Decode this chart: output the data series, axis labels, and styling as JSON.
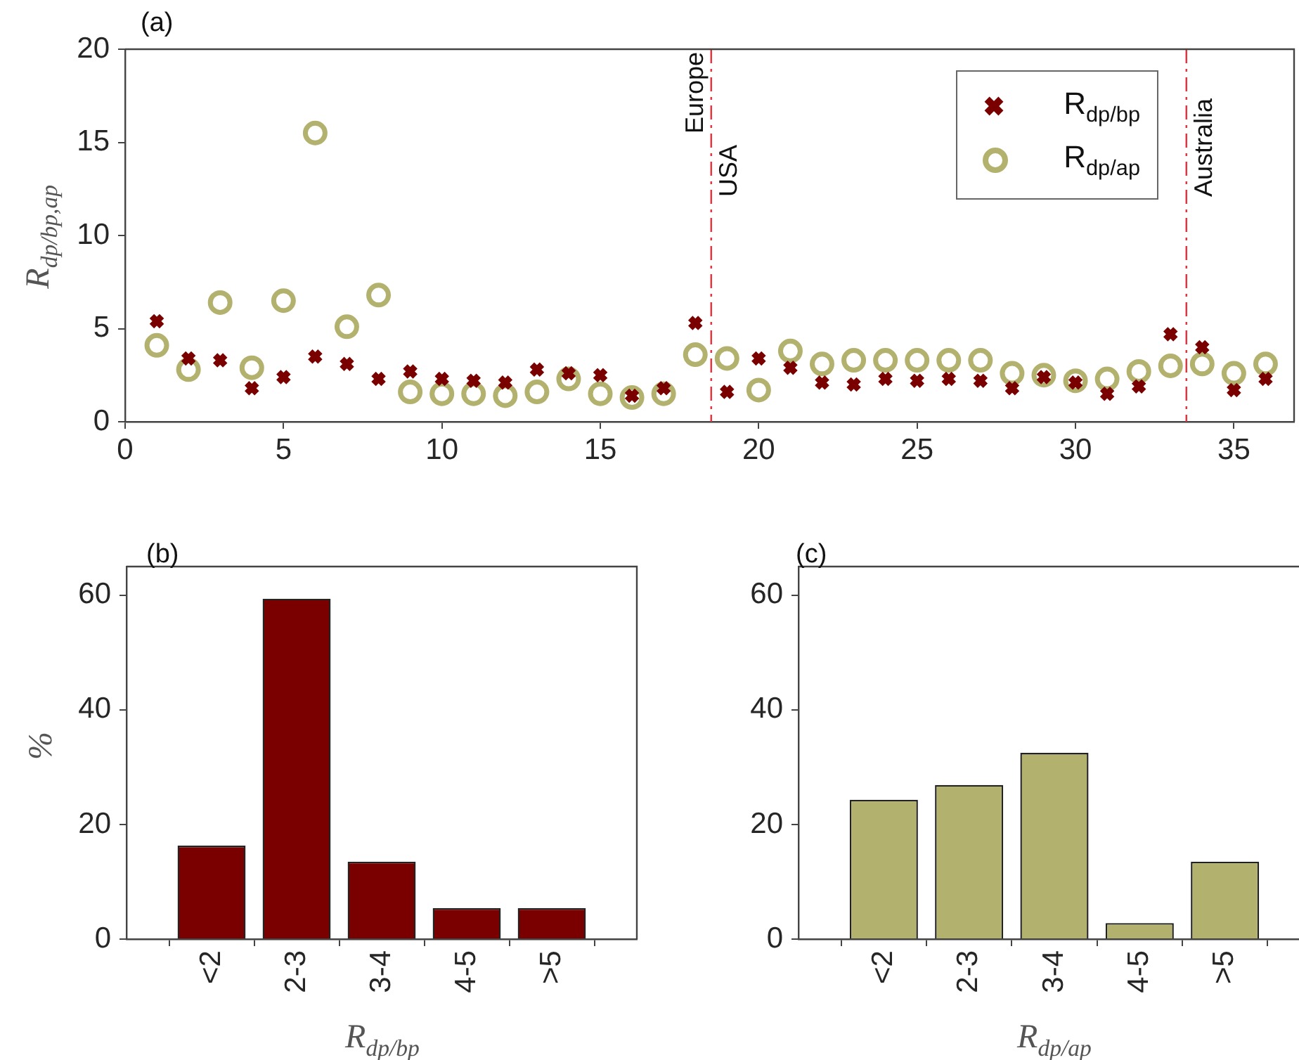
{
  "chart_data": [
    {
      "type": "scatter",
      "title": "(a)",
      "ylabel": "R$_{dp/bp,ap}$",
      "xlim": [
        0,
        36.9
      ],
      "ylim": [
        0,
        20
      ],
      "xticks": [
        0,
        5,
        10,
        15,
        20,
        25,
        30,
        35
      ],
      "yticks": [
        0,
        5,
        10,
        15,
        20
      ],
      "legend": "top right",
      "x": [
        1,
        2,
        3,
        4,
        5,
        6,
        7,
        8,
        9,
        10,
        11,
        12,
        13,
        14,
        15,
        16,
        17,
        18,
        19,
        20,
        21,
        22,
        23,
        24,
        25,
        26,
        27,
        28,
        29,
        30,
        31,
        32,
        33,
        34,
        35,
        36
      ],
      "series": [
        {
          "name": "R$_{dp/bp}$",
          "color": "#7a0000",
          "marker": "cross",
          "values": [
            5.4,
            3.4,
            3.3,
            1.8,
            2.4,
            3.5,
            3.1,
            2.3,
            2.7,
            2.3,
            2.2,
            2.1,
            2.8,
            2.6,
            2.5,
            1.4,
            1.8,
            5.3,
            1.6,
            3.4,
            2.9,
            2.1,
            2.0,
            2.3,
            2.2,
            2.3,
            2.2,
            1.8,
            2.4,
            2.1,
            1.5,
            1.9,
            4.7,
            4.0,
            1.7,
            2.3
          ]
        },
        {
          "name": "R$_{dp/ap}$",
          "color": "#b2b26e",
          "marker": "circle",
          "values": [
            4.1,
            2.8,
            6.4,
            2.9,
            6.5,
            15.5,
            5.1,
            6.8,
            1.6,
            1.5,
            1.5,
            1.4,
            1.6,
            2.3,
            1.5,
            1.3,
            1.5,
            3.6,
            3.4,
            1.7,
            3.8,
            3.1,
            3.3,
            3.3,
            3.3,
            3.3,
            3.3,
            2.6,
            2.5,
            2.2,
            2.3,
            2.7,
            3.0,
            3.1,
            2.6,
            3.1
          ]
        }
      ],
      "ref_lines": [
        {
          "axis": "x",
          "value": 18.5,
          "label": "Europe",
          "color": "#e8303a",
          "line_style": "dashed"
        },
        {
          "axis": "x",
          "value": 33.5,
          "label": "Australia",
          "color": "#e8303a",
          "line_style": "dashed"
        }
      ],
      "annotations": [
        "USA"
      ]
    },
    {
      "type": "bar",
      "title": "(b)",
      "ylabel": "%",
      "xlabel": "R$_{dp/bp}$",
      "categories": [
        "<2",
        "2-3",
        "3-4",
        "4-5",
        ">5"
      ],
      "values": [
        16.3,
        59.4,
        13.5,
        5.4,
        5.4
      ],
      "color": "#7a0000",
      "ylim": [
        0,
        65
      ],
      "yticks": [
        0,
        20,
        40,
        60
      ]
    },
    {
      "type": "bar",
      "title": "(c)",
      "xlabel": "R$_{dp/ap}$",
      "categories": [
        "<2",
        "2-3",
        "3-4",
        "4-5",
        ">5"
      ],
      "values": [
        24.3,
        26.9,
        32.5,
        2.8,
        13.5
      ],
      "color": "#b2b26e",
      "ylim": [
        0,
        65
      ],
      "yticks": [
        0,
        20,
        40,
        60
      ]
    }
  ]
}
